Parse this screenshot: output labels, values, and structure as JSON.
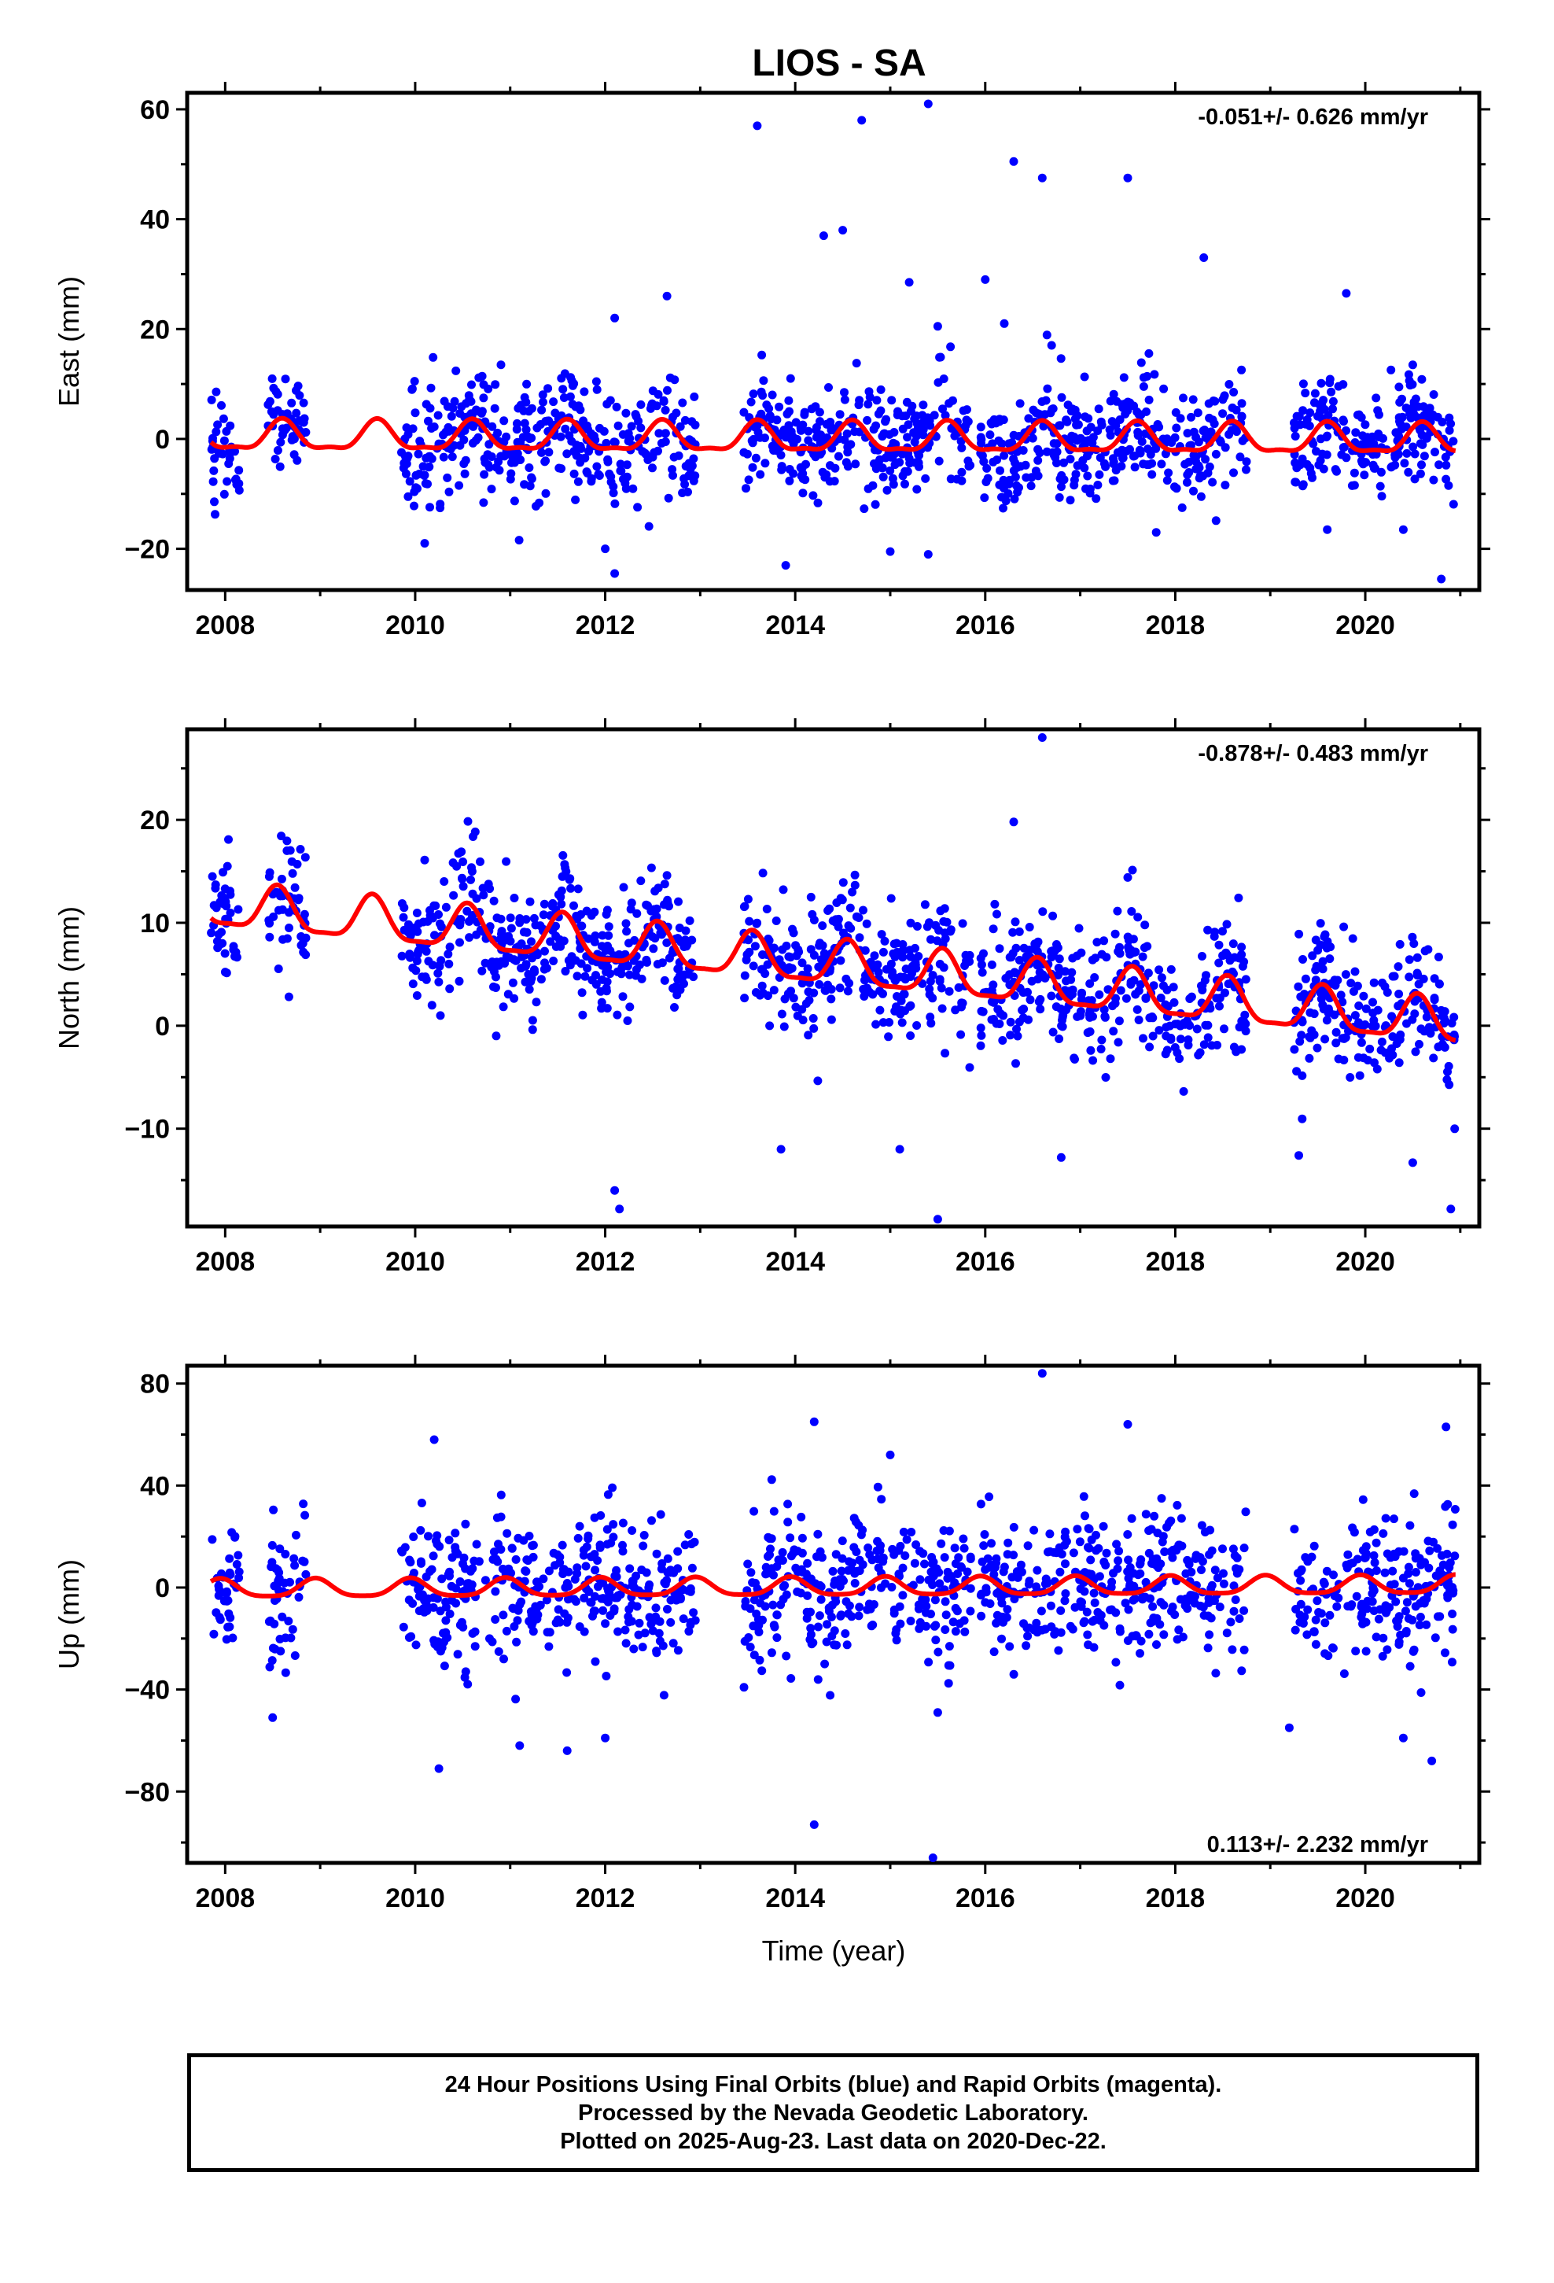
{
  "title": "LIOS - SA",
  "footer": {
    "line1": "24 Hour Positions Using Final Orbits (blue) and Rapid Orbits (magenta).",
    "line2": "Processed by the Nevada Geodetic Laboratory.",
    "line3": "Plotted on 2025-Aug-23. Last data on 2020-Dec-22."
  },
  "chart_data": [
    {
      "type": "scatter",
      "component": "East",
      "ylabel": "East (mm)",
      "xlabel": "",
      "xlim": [
        2007.6,
        2021.2
      ],
      "ylim": [
        -27.5,
        63
      ],
      "xticks": [
        2008,
        2010,
        2012,
        2014,
        2016,
        2018,
        2020
      ],
      "yticks": [
        -20,
        0,
        20,
        40,
        60
      ],
      "ytick_labels": [
        "−20",
        "0",
        "20",
        "40",
        "60"
      ],
      "rate_label": "-0.051+/- 0.626 mm/yr",
      "rate_position": "top-right",
      "colors": {
        "points": "#0000ff",
        "model": "#ff0000"
      },
      "model": {
        "offset": 0.0,
        "trend_mm_per_yr": -0.051,
        "annual_amp": 2.6,
        "annual_phase_year": 2008.6,
        "semiannual_amp": 0.9
      },
      "data_segments": [
        [
          2007.85,
          2008.15
        ],
        [
          2008.45,
          2008.85
        ],
        [
          2009.85,
          2012.95
        ],
        [
          2013.45,
          2015.85
        ],
        [
          2015.95,
          2018.75
        ],
        [
          2019.25,
          2020.95
        ]
      ],
      "scatter_sigma": 5.0,
      "outliers": [
        [
          2013.6,
          57
        ],
        [
          2014.3,
          37
        ],
        [
          2014.5,
          38
        ],
        [
          2014.7,
          58
        ],
        [
          2015.4,
          61
        ],
        [
          2015.2,
          28.5
        ],
        [
          2016.0,
          29
        ],
        [
          2016.3,
          50.5
        ],
        [
          2016.6,
          47.5
        ],
        [
          2017.5,
          47.5
        ],
        [
          2018.3,
          33
        ],
        [
          2019.8,
          26.5
        ],
        [
          2012.65,
          26
        ],
        [
          2012.1,
          22
        ],
        [
          2016.2,
          21
        ],
        [
          2015.5,
          20.5
        ],
        [
          2012.0,
          -20
        ],
        [
          2012.1,
          -24.5
        ],
        [
          2013.9,
          -23
        ],
        [
          2015.0,
          -20.5
        ],
        [
          2015.4,
          -21
        ],
        [
          2020.8,
          -25.5
        ],
        [
          2010.1,
          -19
        ],
        [
          2017.8,
          -17
        ],
        [
          2019.6,
          -16.5
        ],
        [
          2020.4,
          -16.5
        ]
      ]
    },
    {
      "type": "scatter",
      "component": "North",
      "ylabel": "North (mm)",
      "xlabel": "",
      "xlim": [
        2007.6,
        2021.2
      ],
      "ylim": [
        -19.5,
        28.8
      ],
      "xticks": [
        2008,
        2010,
        2012,
        2014,
        2016,
        2018,
        2020
      ],
      "yticks": [
        -10,
        0,
        10,
        20
      ],
      "ytick_labels": [
        "−10",
        "0",
        "10",
        "20"
      ],
      "rate_label": "-0.878+/- 0.483 mm/yr",
      "rate_position": "top-right",
      "colors": {
        "points": "#0000ff",
        "model": "#ff0000"
      },
      "model": {
        "offset": 6.2,
        "trend_mm_per_yr": -0.878,
        "annual_amp": 2.1,
        "annual_phase_year": 2008.55,
        "semiannual_amp": 0.6
      },
      "data_segments": [
        [
          2007.85,
          2008.15
        ],
        [
          2008.45,
          2008.85
        ],
        [
          2009.85,
          2012.95
        ],
        [
          2013.45,
          2015.85
        ],
        [
          2015.95,
          2018.75
        ],
        [
          2019.25,
          2020.95
        ]
      ],
      "scatter_sigma": 3.2,
      "outliers": [
        [
          2016.6,
          28
        ],
        [
          2016.3,
          19.8
        ],
        [
          2017.5,
          14.4
        ],
        [
          2010.1,
          16.1
        ],
        [
          2012.65,
          14.6
        ],
        [
          2016.1,
          11.8
        ],
        [
          2007.9,
          13.7
        ],
        [
          2008.0,
          13.3
        ],
        [
          2012.1,
          -16
        ],
        [
          2012.15,
          -17.8
        ],
        [
          2015.5,
          -18.8
        ],
        [
          2020.9,
          -17.8
        ],
        [
          2013.85,
          -12
        ],
        [
          2016.8,
          -12.8
        ],
        [
          2019.3,
          -12.6
        ],
        [
          2020.5,
          -13.3
        ],
        [
          2015.1,
          -12
        ]
      ]
    },
    {
      "type": "scatter",
      "component": "Up",
      "ylabel": "Up (mm)",
      "xlabel": "Time (year)",
      "xlim": [
        2007.6,
        2021.2
      ],
      "ylim": [
        -108,
        87
      ],
      "xticks": [
        2008,
        2010,
        2012,
        2014,
        2016,
        2018,
        2020
      ],
      "yticks": [
        -80,
        -40,
        0,
        40,
        80
      ],
      "ytick_labels": [
        "−80",
        "−40",
        "0",
        "40",
        "80"
      ],
      "rate_label": "0.113+/- 2.232 mm/yr",
      "rate_position": "bottom-right",
      "colors": {
        "points": "#0000ff",
        "model": "#ff0000"
      },
      "model": {
        "offset": 0.0,
        "trend_mm_per_yr": 0.113,
        "annual_amp": 3.5,
        "annual_phase_year": 2008.95,
        "semiannual_amp": 0.8
      },
      "data_segments": [
        [
          2007.85,
          2008.15
        ],
        [
          2008.45,
          2008.85
        ],
        [
          2009.85,
          2012.95
        ],
        [
          2013.45,
          2015.85
        ],
        [
          2015.95,
          2018.75
        ],
        [
          2019.25,
          2020.95
        ]
      ],
      "scatter_sigma": 14.0,
      "outliers": [
        [
          2016.6,
          84
        ],
        [
          2017.5,
          64
        ],
        [
          2020.85,
          63
        ],
        [
          2014.2,
          65
        ],
        [
          2010.2,
          58
        ],
        [
          2015.0,
          52
        ],
        [
          2010.25,
          -71
        ],
        [
          2011.1,
          -62
        ],
        [
          2011.6,
          -64
        ],
        [
          2012.0,
          -59
        ],
        [
          2014.2,
          -93
        ],
        [
          2015.45,
          -106
        ],
        [
          2019.2,
          -55
        ],
        [
          2020.4,
          -59
        ],
        [
          2020.7,
          -68
        ],
        [
          2008.5,
          -51
        ],
        [
          2015.5,
          -49
        ]
      ]
    }
  ]
}
